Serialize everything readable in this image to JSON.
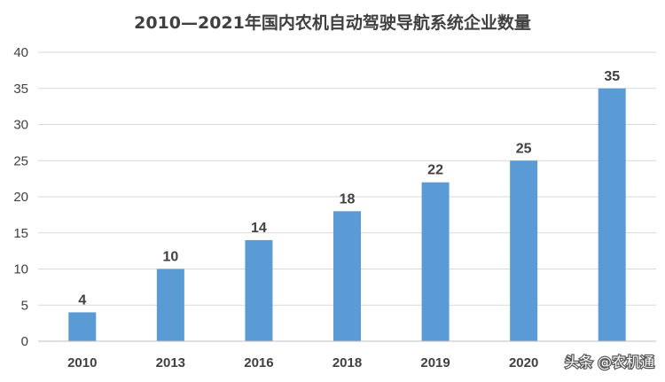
{
  "colors": {
    "bar": "#5b9bd5",
    "grid": "#d9d9d9",
    "axis": "#bfbfbf",
    "text": "#404040"
  },
  "watermark": {
    "text": "头条 @农机通"
  },
  "chart_data": {
    "type": "bar",
    "title": "2010—2021年国内农机自动驾驶导航系统企业数量",
    "xlabel": "",
    "ylabel": "",
    "categories": [
      "2010",
      "2013",
      "2016",
      "2018",
      "2019",
      "2020",
      ""
    ],
    "values": [
      4,
      10,
      14,
      18,
      22,
      25,
      35
    ],
    "data_labels": [
      "4",
      "10",
      "14",
      "18",
      "22",
      "25",
      "35"
    ],
    "ylim": [
      0,
      40
    ],
    "yticks": [
      0,
      5,
      10,
      15,
      20,
      25,
      30,
      35,
      40
    ],
    "grid": true,
    "legend": "none"
  }
}
